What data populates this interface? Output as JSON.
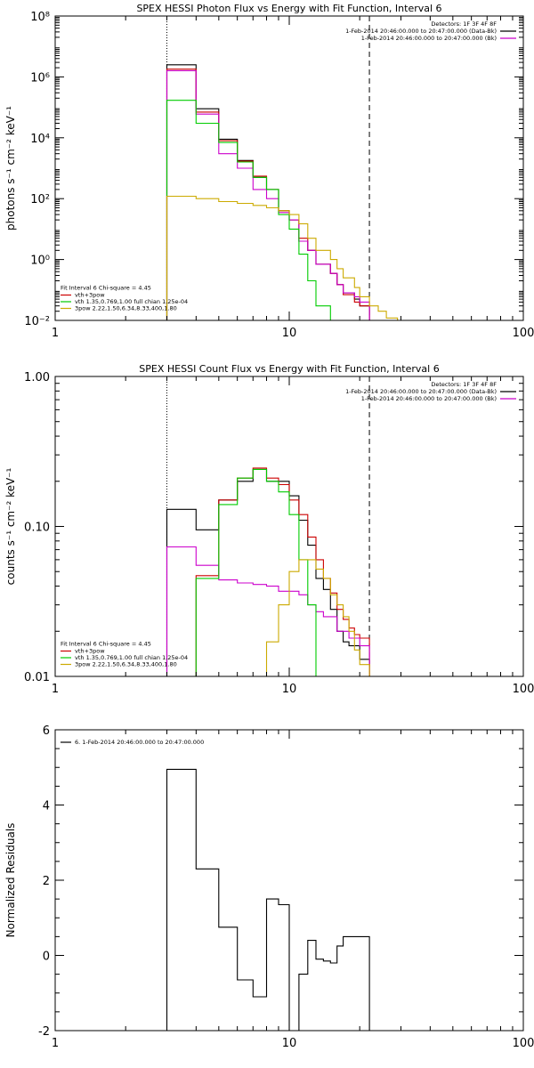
{
  "chart_data": [
    {
      "type": "line",
      "title": "SPEX HESSI Photon Flux vs Energy with Fit Function, Interval 6",
      "ylabel": "photons s⁻¹ cm⁻² keV⁻¹",
      "xlabel": "",
      "xscale": "log",
      "yscale": "log",
      "xlim": [
        1,
        100
      ],
      "ylim": [
        0.01,
        100000000
      ],
      "xticks": [
        {
          "v": 1,
          "label": "1"
        },
        {
          "v": 10,
          "label": "10"
        },
        {
          "v": 100,
          "label": "100"
        }
      ],
      "yticks": [
        {
          "v": 0.01,
          "label": "10⁻²"
        },
        {
          "v": 1,
          "label": "10⁰"
        },
        {
          "v": 100,
          "label": "10²"
        },
        {
          "v": 10000,
          "label": "10⁴"
        },
        {
          "v": 1000000,
          "label": "10⁶"
        },
        {
          "v": 100000000,
          "label": "10⁸"
        }
      ],
      "vlines": [
        {
          "x": 3.0,
          "style": "dotted"
        },
        {
          "x": 22.0,
          "style": "dashed"
        }
      ],
      "info_lines": [
        "Detectors: 1F 3F 4F 8F",
        "1-Feb-2014 20:46:00.000 to 20:47:00.000 (Data-Bk)",
        "1-Feb-2014 20:46:00.000 to 20:47:00.000 (Bk)"
      ],
      "info_colors": [
        "",
        "#000000",
        "#cc00cc"
      ],
      "legend_title": "Fit Interval  6   Chi-square = 4.45",
      "legend": [
        {
          "label": "vth+3pow",
          "color": "#cc0000"
        },
        {
          "label": "vth 1.35,0.769,1.00  full chian 1.25e-04",
          "color": "#00cc00"
        },
        {
          "label": "3pow 2.22,1.50,6.34,8.33,400,1.80",
          "color": "#ccaa00"
        }
      ],
      "edges": [
        3,
        4,
        5,
        6,
        7,
        8,
        9,
        10,
        11,
        12,
        13,
        15,
        16,
        17,
        19,
        20,
        22,
        24,
        26,
        29,
        32
      ],
      "series": [
        {
          "name": "Data-Bk",
          "color": "#000000",
          "values": [
            2500000,
            90000,
            9000,
            1800,
            500,
            200,
            40,
            20,
            4,
            2,
            0.7,
            0.35,
            0.15,
            0.08,
            0.05,
            0.03,
            0.01,
            null,
            null,
            null
          ]
        },
        {
          "name": "vth+3pow",
          "color": "#cc0000",
          "values": [
            1800000,
            70000,
            8000,
            1700,
            550,
            200,
            40,
            20,
            5,
            2,
            0.7,
            0.35,
            0.15,
            0.07,
            0.04,
            0.03,
            0.01,
            null,
            null,
            null
          ]
        },
        {
          "name": "Bk",
          "color": "#cc00cc",
          "values": [
            1600000,
            60000,
            3000,
            1000,
            200,
            100,
            35,
            20,
            4,
            2,
            0.7,
            0.35,
            0.15,
            0.08,
            0.06,
            0.04,
            null,
            null,
            null,
            null
          ]
        },
        {
          "name": "vth",
          "color": "#00cc00",
          "values": [
            170000,
            30000,
            7000,
            1600,
            500,
            200,
            30,
            10,
            1.5,
            0.2,
            0.03,
            0.01,
            null,
            null,
            null,
            null,
            null,
            null,
            null,
            null
          ]
        },
        {
          "name": "3pow",
          "color": "#ccaa00",
          "values": [
            120,
            100,
            80,
            70,
            60,
            50,
            40,
            30,
            15,
            5,
            2,
            1,
            0.5,
            0.25,
            0.12,
            0.06,
            0.03,
            0.02,
            0.012,
            0.01
          ]
        }
      ]
    },
    {
      "type": "line",
      "title": "SPEX HESSI Count Flux vs Energy with Fit Function, Interval 6",
      "ylabel": "counts s⁻¹ cm⁻² keV⁻¹",
      "xlabel": "",
      "xscale": "log",
      "yscale": "log",
      "xlim": [
        1,
        100
      ],
      "ylim": [
        0.01,
        1.0
      ],
      "xticks": [
        {
          "v": 1,
          "label": "1"
        },
        {
          "v": 10,
          "label": "10"
        },
        {
          "v": 100,
          "label": "100"
        }
      ],
      "yticks": [
        {
          "v": 0.01,
          "label": "0.01"
        },
        {
          "v": 0.1,
          "label": "0.10"
        },
        {
          "v": 1,
          "label": "1.00"
        }
      ],
      "vlines": [
        {
          "x": 3.0,
          "style": "dotted"
        },
        {
          "x": 22.0,
          "style": "dashed"
        }
      ],
      "info_lines": [
        "Detectors: 1F 3F 4F 8F",
        "1-Feb-2014 20:46:00.000 to 20:47:00.000 (Data-Bk)",
        "1-Feb-2014 20:46:00.000 to 20:47:00.000 (Bk)"
      ],
      "info_colors": [
        "",
        "#000000",
        "#cc00cc"
      ],
      "legend_title": "Fit Interval  6   Chi-square = 4.45",
      "legend": [
        {
          "label": "vth+3pow",
          "color": "#cc0000"
        },
        {
          "label": "vth 1.35,0.769,1.00  full chian 1.25e-04",
          "color": "#00cc00"
        },
        {
          "label": "3pow 2.22,1.50,6.34,8.33,400,1.80",
          "color": "#ccaa00"
        }
      ],
      "edges": [
        3,
        4,
        5,
        6,
        7,
        8,
        9,
        10,
        11,
        12,
        13,
        14,
        15,
        16,
        17,
        18,
        19,
        20,
        22
      ],
      "series": [
        {
          "name": "Data-Bk",
          "color": "#000000",
          "values": [
            0.13,
            0.095,
            0.15,
            0.2,
            0.24,
            0.2,
            0.2,
            0.16,
            0.11,
            0.075,
            0.045,
            0.038,
            0.028,
            0.02,
            0.017,
            0.016,
            0.016,
            0.013
          ]
        },
        {
          "name": "vth+3pow",
          "color": "#cc0000",
          "values": [
            null,
            0.047,
            0.15,
            0.21,
            0.245,
            0.21,
            0.19,
            0.15,
            0.12,
            0.085,
            0.06,
            0.045,
            0.036,
            0.028,
            0.024,
            0.021,
            0.019,
            0.018
          ]
        },
        {
          "name": "Bk",
          "color": "#cc00cc",
          "values": [
            0.073,
            0.055,
            0.044,
            0.042,
            0.041,
            0.04,
            0.037,
            0.037,
            0.035,
            0.03,
            0.027,
            0.025,
            0.025,
            0.02,
            0.02,
            0.018,
            0.018,
            0.016
          ]
        },
        {
          "name": "vth",
          "color": "#00cc00",
          "values": [
            null,
            0.045,
            0.14,
            0.21,
            0.24,
            0.2,
            0.17,
            0.12,
            0.06,
            0.03,
            null,
            null,
            null,
            null,
            null,
            null,
            null,
            null
          ]
        },
        {
          "name": "3pow",
          "color": "#ccaa00",
          "values": [
            null,
            null,
            null,
            null,
            null,
            0.017,
            0.03,
            0.05,
            0.06,
            0.06,
            0.052,
            0.045,
            0.035,
            0.03,
            0.025,
            0.02,
            0.015,
            0.012
          ]
        }
      ]
    },
    {
      "type": "line",
      "title": "",
      "ylabel": "Normalized Residuals",
      "xlabel": "",
      "xscale": "log",
      "yscale": "linear",
      "xlim": [
        1,
        100
      ],
      "ylim": [
        -2,
        6
      ],
      "xticks": [
        {
          "v": 1,
          "label": "1"
        },
        {
          "v": 10,
          "label": "10"
        },
        {
          "v": 100,
          "label": "100"
        }
      ],
      "yticks": [
        {
          "v": -2,
          "label": "-2"
        },
        {
          "v": 0,
          "label": "0"
        },
        {
          "v": 2,
          "label": "2"
        },
        {
          "v": 4,
          "label": "4"
        },
        {
          "v": 6,
          "label": "6"
        }
      ],
      "info_lines": [],
      "legend_title": "",
      "legend": [
        {
          "label": "6.  1-Feb-2014 20:46:00.000 to 20:47:00.000",
          "color": "#000000"
        }
      ],
      "edges": [
        3,
        4,
        5,
        6,
        7,
        8,
        9,
        10,
        11,
        12,
        13,
        14,
        15,
        16,
        17,
        18,
        19,
        20,
        22
      ],
      "series": [
        {
          "name": "",
          "color": "#000000",
          "values": [
            4.95,
            2.3,
            0.75,
            -0.65,
            -1.1,
            1.5,
            1.35,
            -2,
            -0.5,
            0.4,
            -0.1,
            -0.15,
            -0.2,
            0.25,
            0.5,
            0.5,
            0.5,
            0.5
          ]
        }
      ]
    }
  ]
}
